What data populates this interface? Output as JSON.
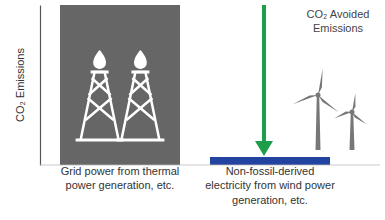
{
  "chart_data": {
    "type": "bar",
    "y_label": "CO₂ Emissions",
    "categories": [
      "Grid power from thermal power generation, etc.",
      "Non-fossil-derived electricity from wind power generation, etc."
    ],
    "values": [
      100,
      5
    ],
    "colors": [
      "#666666",
      "#2343a0"
    ],
    "ylim": [
      0,
      100
    ],
    "yticks": [],
    "tick_labels": "x",
    "annotation": "CO₂ Avoided Emissions"
  }
}
